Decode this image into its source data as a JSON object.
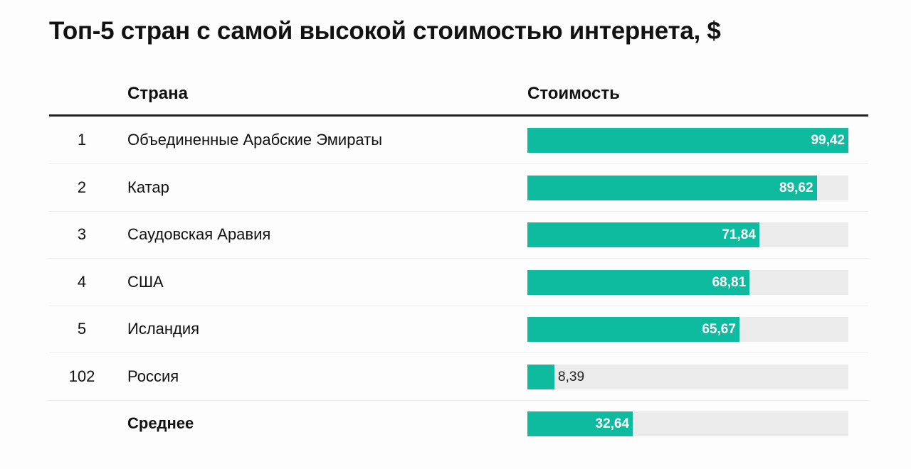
{
  "chart_data": {
    "type": "bar",
    "title": "Топ-5 стран с самой высокой стоимостью интернета, $",
    "columns": [
      "Страна",
      "Стоимость"
    ],
    "rows": [
      {
        "rank": "1",
        "country": "Объединенные Арабские Эмираты",
        "value": 99.42,
        "label": "99,42"
      },
      {
        "rank": "2",
        "country": "Катар",
        "value": 89.62,
        "label": "89,62"
      },
      {
        "rank": "3",
        "country": "Саудовская Аравия",
        "value": 71.84,
        "label": "71,84"
      },
      {
        "rank": "4",
        "country": "США",
        "value": 68.81,
        "label": "68,81"
      },
      {
        "rank": "5",
        "country": "Исландия",
        "value": 65.67,
        "label": "65,67"
      },
      {
        "rank": "102",
        "country": "Россия",
        "value": 8.39,
        "label": "8,39"
      },
      {
        "rank": "",
        "country": "Среднее",
        "value": 32.64,
        "label": "32,64",
        "bold": true
      }
    ],
    "xlim": [
      0,
      99.42
    ],
    "bar_color": "#0fbb9f",
    "track_color": "#ebebeb"
  }
}
